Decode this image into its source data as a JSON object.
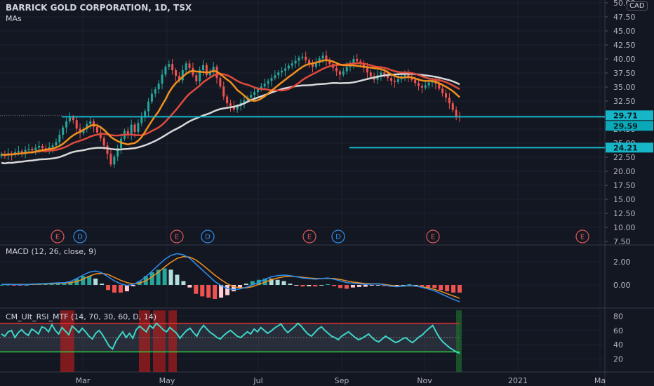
{
  "header": {
    "symbol_line": "BARRICK GOLD CORPORATION, 1D, TSX",
    "ma_label": "MAs",
    "currency": "CAD",
    "macd_label": "MACD (12, 26, close, 9)",
    "rsi_label": "CM_Ult_RSI_MTF (14, 70, 30, 60, D, 14)"
  },
  "price_axis": {
    "ticks": [
      "50.00",
      "47.50",
      "45.00",
      "42.50",
      "40.00",
      "37.50",
      "35.00",
      "32.50",
      "30.00",
      "27.50",
      "25.00",
      "22.50",
      "20.00",
      "17.50",
      "15.00",
      "12.50",
      "10.00",
      "7.50"
    ],
    "badges": [
      {
        "text": "29.71",
        "color": "#17b5c8"
      },
      {
        "text": "29.59",
        "color": "#0aa8b8"
      },
      {
        "text": "24.21",
        "color": "#17b5c8"
      }
    ]
  },
  "macd_axis": {
    "ticks": [
      "2.00",
      "0.00"
    ]
  },
  "rsi_axis": {
    "ticks": [
      "80",
      "60",
      "40",
      "20"
    ]
  },
  "time_axis": {
    "labels": [
      "Mar",
      "May",
      "Jul",
      "Sep",
      "Nov",
      "2021",
      "Ma"
    ]
  },
  "events": [
    {
      "letter": "E",
      "color": "#e05a5a"
    },
    {
      "letter": "D",
      "color": "#2f8ff0"
    },
    {
      "letter": "E",
      "color": "#e05a5a"
    },
    {
      "letter": "D",
      "color": "#2f8ff0"
    },
    {
      "letter": "E",
      "color": "#e05a5a"
    },
    {
      "letter": "D",
      "color": "#2f8ff0"
    },
    {
      "letter": "E",
      "color": "#e05a5a"
    },
    {
      "letter": "E",
      "color": "#e05a5a"
    }
  ],
  "colors": {
    "up": "#26a69a",
    "down": "#ef5350",
    "ma_fast": "#f0901e",
    "ma_mid": "#e04a3c",
    "ma_slow": "#d8d8d8",
    "hline": "#17b5c8",
    "macd": "#2f8ff0",
    "signal": "#f0901e",
    "rsi": "#3dd6c8",
    "overbought": "#e03030",
    "oversold": "#2ecc40"
  },
  "chart_data": [
    {
      "type": "candlestick",
      "title": "BARRICK GOLD CORPORATION, 1D, TSX",
      "ylim": [
        7.5,
        50
      ],
      "x_labels": [
        "Mar",
        "May",
        "Jul",
        "Sep",
        "Nov",
        "2021",
        "Ma"
      ],
      "levels": [
        29.71,
        24.21
      ],
      "last_price": 29.59,
      "close": [
        23.0,
        22.8,
        23.2,
        22.9,
        23.4,
        23.6,
        23.3,
        23.8,
        24.0,
        23.7,
        24.2,
        24.5,
        24.1,
        23.9,
        24.3,
        24.6,
        25.2,
        26.5,
        27.8,
        28.9,
        29.6,
        29.1,
        27.6,
        26.8,
        27.5,
        28.4,
        28.9,
        27.9,
        26.9,
        25.9,
        24.6,
        23.1,
        21.2,
        22.6,
        24.1,
        25.8,
        27.2,
        26.4,
        28.3,
        27.0,
        28.6,
        29.6,
        30.7,
        32.4,
        33.8,
        34.6,
        35.6,
        37.2,
        38.6,
        39.1,
        38.0,
        37.0,
        36.2,
        38.0,
        39.2,
        38.4,
        37.1,
        36.0,
        38.0,
        38.9,
        37.1,
        37.6,
        38.6,
        36.6,
        35.1,
        33.3,
        32.1,
        31.6,
        31.0,
        31.6,
        32.2,
        32.6,
        33.1,
        33.6,
        34.1,
        34.6,
        35.1,
        35.6,
        36.1,
        36.6,
        37.1,
        37.6,
        37.9,
        38.3,
        38.8,
        39.2,
        39.7,
        40.2,
        40.4,
        39.8,
        39.2,
        38.6,
        39.3,
        40.1,
        40.6,
        39.8,
        39.1,
        38.4,
        37.8,
        37.2,
        37.8,
        38.6,
        39.3,
        40.0,
        39.6,
        39.1,
        38.4,
        37.6,
        36.9,
        36.3,
        37.1,
        37.6,
        37.1,
        36.6,
        36.1,
        35.9,
        36.4,
        36.9,
        37.3,
        36.9,
        36.3,
        35.7,
        35.2,
        34.9,
        35.3,
        35.8,
        36.3,
        35.6,
        34.7,
        33.9,
        33.1,
        32.1,
        30.9,
        29.7,
        29.59
      ]
    },
    {
      "type": "line",
      "title": "MACD (12, 26, close, 9)",
      "ylim": [
        -1.6,
        3.4
      ],
      "series": [
        {
          "name": "MACD",
          "values": [
            0.05,
            0.06,
            0.04,
            0.02,
            0.05,
            0.08,
            0.1,
            0.12,
            0.15,
            0.18,
            0.2,
            0.3,
            0.55,
            0.85,
            1.1,
            1.2,
            1.05,
            0.7,
            0.35,
            0.1,
            -0.05,
            0.05,
            0.3,
            0.7,
            1.2,
            1.7,
            2.2,
            2.55,
            2.7,
            2.6,
            2.3,
            1.8,
            1.3,
            0.8,
            0.3,
            -0.05,
            -0.3,
            -0.4,
            -0.35,
            -0.2,
            0.0,
            0.25,
            0.5,
            0.7,
            0.8,
            0.85,
            0.8,
            0.7,
            0.6,
            0.55,
            0.5,
            0.55,
            0.6,
            0.5,
            0.35,
            0.2,
            0.15,
            0.1,
            0.05,
            0.08,
            0.1,
            0.0,
            -0.1,
            -0.15,
            -0.1,
            -0.05,
            -0.1,
            -0.2,
            -0.35,
            -0.5,
            -0.75,
            -1.0,
            -1.25,
            -1.45
          ]
        },
        {
          "name": "Signal",
          "values": [
            0.05,
            0.05,
            0.05,
            0.04,
            0.04,
            0.05,
            0.07,
            0.09,
            0.11,
            0.13,
            0.15,
            0.2,
            0.3,
            0.5,
            0.75,
            0.95,
            1.0,
            0.9,
            0.65,
            0.4,
            0.2,
            0.1,
            0.15,
            0.35,
            0.7,
            1.1,
            1.55,
            1.95,
            2.3,
            2.45,
            2.4,
            2.15,
            1.75,
            1.3,
            0.85,
            0.45,
            0.1,
            -0.15,
            -0.25,
            -0.25,
            -0.15,
            0.05,
            0.25,
            0.45,
            0.6,
            0.7,
            0.75,
            0.72,
            0.66,
            0.6,
            0.56,
            0.55,
            0.57,
            0.55,
            0.47,
            0.35,
            0.25,
            0.18,
            0.12,
            0.1,
            0.1,
            0.05,
            -0.03,
            -0.1,
            -0.1,
            -0.08,
            -0.09,
            -0.15,
            -0.25,
            -0.38,
            -0.55,
            -0.75,
            -0.95,
            -1.15
          ]
        }
      ]
    },
    {
      "type": "line",
      "title": "CM_Ult_RSI_MTF (14, 70, 30, 60, D, 14)",
      "ylim": [
        5,
        90
      ],
      "levels": [
        70,
        50,
        30
      ],
      "series": [
        {
          "name": "RSI",
          "values": [
            55,
            52,
            58,
            60,
            50,
            57,
            61,
            56,
            53,
            62,
            59,
            55,
            65,
            63,
            58,
            68,
            60,
            55,
            64,
            59,
            54,
            66,
            62,
            57,
            63,
            58,
            52,
            48,
            56,
            60,
            54,
            46,
            38,
            34,
            45,
            52,
            58,
            50,
            56,
            49,
            61,
            66,
            62,
            58,
            67,
            63,
            70,
            66,
            61,
            58,
            64,
            60,
            56,
            49,
            55,
            60,
            63,
            57,
            52,
            61,
            67,
            62,
            57,
            54,
            50,
            48,
            53,
            57,
            60,
            56,
            52,
            50,
            54,
            58,
            55,
            62,
            58,
            64,
            60,
            56,
            59,
            63,
            66,
            69,
            62,
            57,
            61,
            65,
            70,
            66,
            60,
            55,
            52,
            57,
            62,
            65,
            60,
            56,
            52,
            50,
            47,
            52,
            55,
            58,
            54,
            50,
            47,
            49,
            52,
            55,
            50,
            46,
            44,
            48,
            52,
            49,
            46,
            43,
            45,
            48,
            50,
            46,
            43,
            47,
            51,
            54,
            59,
            63,
            67,
            58,
            50,
            44,
            40,
            36,
            33,
            30,
            28
          ]
        }
      ]
    }
  ]
}
